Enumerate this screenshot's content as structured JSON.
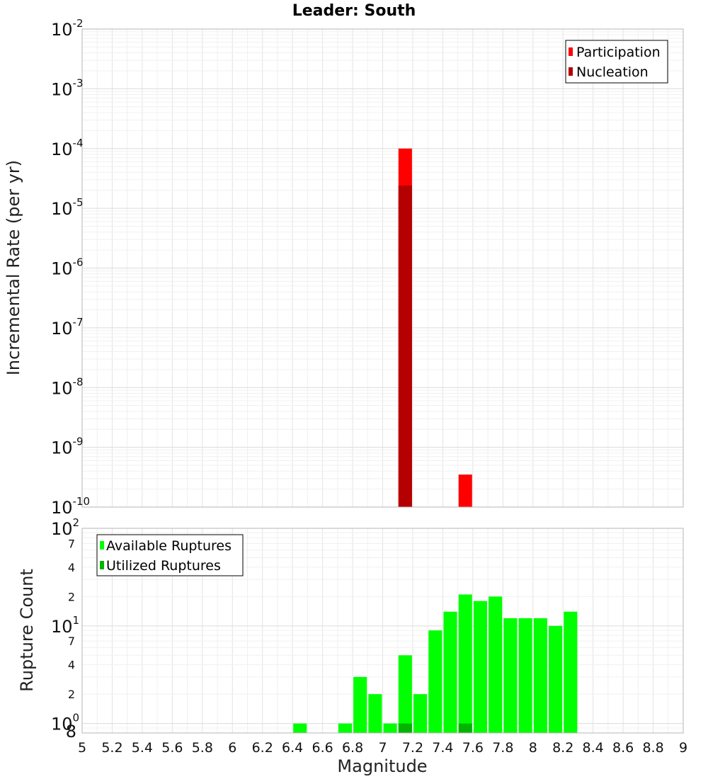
{
  "chart_data": [
    {
      "type": "bar",
      "title": "Leader: South",
      "ylabel": "Incremental Rate (per yr)",
      "yscale": "log",
      "ylim": [
        1e-10,
        0.01
      ],
      "xlim": [
        5,
        9
      ],
      "y_tick_labels": [
        {
          "base": "10",
          "exp": "-2"
        },
        {
          "base": "10",
          "exp": "-3"
        },
        {
          "base": "10",
          "exp": "-4"
        },
        {
          "base": "10",
          "exp": "-5"
        },
        {
          "base": "10",
          "exp": "-6"
        },
        {
          "base": "10",
          "exp": "-7"
        },
        {
          "base": "10",
          "exp": "-8"
        },
        {
          "base": "10",
          "exp": "-9"
        },
        {
          "base": "10",
          "exp": "-10"
        }
      ],
      "legend": {
        "position": "top-right",
        "entries": [
          "Participation",
          "Nucleation"
        ]
      },
      "grid": true,
      "series": [
        {
          "name": "Participation",
          "color": "#ff0000",
          "points": [
            {
              "x": 7.15,
              "y": 0.0001
            },
            {
              "x": 7.55,
              "y": 3.5e-10
            }
          ]
        },
        {
          "name": "Nucleation",
          "color": "#b40000",
          "points": [
            {
              "x": 7.15,
              "y": 2.4e-05
            }
          ]
        }
      ]
    },
    {
      "type": "bar",
      "ylabel": "Rupture Count",
      "xlabel": "Magnitude",
      "yscale": "log",
      "ylim": [
        0.8,
        100
      ],
      "xlim": [
        5,
        9
      ],
      "x_ticks": [
        "5",
        "5.2",
        "5.4",
        "5.6",
        "5.8",
        "6",
        "6.2",
        "6.4",
        "6.6",
        "6.8",
        "7",
        "7.2",
        "7.4",
        "7.6",
        "7.8",
        "8",
        "8.2",
        "8.4",
        "8.6",
        "8.8",
        "9"
      ],
      "y_major_labels": [
        {
          "base": "10",
          "exp": "2"
        },
        {
          "base": "10",
          "exp": "1"
        },
        {
          "base": "10",
          "exp": "0"
        }
      ],
      "y_minor_labels": [
        "7",
        "4",
        "2",
        "7",
        "4",
        "2",
        "8"
      ],
      "legend": {
        "position": "top-left",
        "entries": [
          "Available Ruptures",
          "Utilized Ruptures"
        ]
      },
      "grid": true,
      "series": [
        {
          "name": "Available Ruptures",
          "color": "#00ff00",
          "points": [
            {
              "x": 6.45,
              "y": 1
            },
            {
              "x": 6.75,
              "y": 1
            },
            {
              "x": 6.85,
              "y": 3
            },
            {
              "x": 6.95,
              "y": 2
            },
            {
              "x": 7.05,
              "y": 1
            },
            {
              "x": 7.15,
              "y": 5
            },
            {
              "x": 7.25,
              "y": 2
            },
            {
              "x": 7.35,
              "y": 9
            },
            {
              "x": 7.45,
              "y": 14
            },
            {
              "x": 7.55,
              "y": 21
            },
            {
              "x": 7.65,
              "y": 18
            },
            {
              "x": 7.75,
              "y": 20
            },
            {
              "x": 7.85,
              "y": 12
            },
            {
              "x": 7.95,
              "y": 12
            },
            {
              "x": 8.05,
              "y": 12
            },
            {
              "x": 8.15,
              "y": 10
            },
            {
              "x": 8.25,
              "y": 14
            }
          ]
        },
        {
          "name": "Utilized Ruptures",
          "color": "#00b400",
          "points": [
            {
              "x": 7.15,
              "y": 1
            },
            {
              "x": 7.55,
              "y": 1
            }
          ]
        }
      ]
    }
  ]
}
